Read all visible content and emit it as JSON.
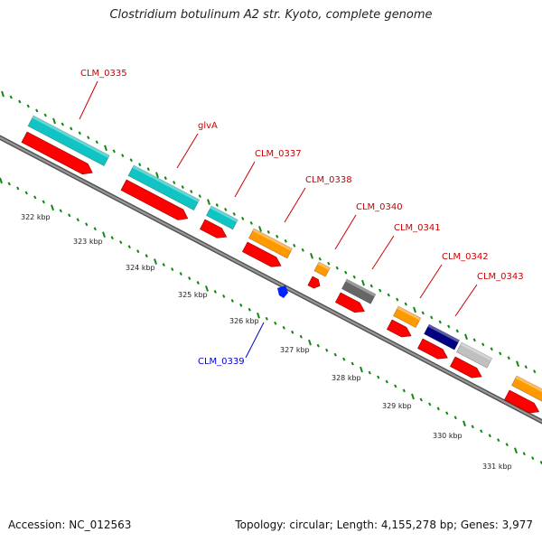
{
  "title": "Clostridium botulinum A2 str. Kyoto, complete genome",
  "footer": {
    "accession": "Accession: NC_012563",
    "stats": "Topology: circular; Length: 4,155,278 bp; Genes: 3,977"
  },
  "colors": {
    "cds": "#ff0000",
    "cyan_feature": "#11c4c4",
    "orange_feature": "#ff9900",
    "gray_feature": "#666666",
    "navy_feature": "#000080",
    "light_gray_feature": "#c0c0c0",
    "blue_feature": "#0022ff",
    "backbone": "#777777",
    "tick": "#118811",
    "label_red": "#cc0000",
    "label_blue": "#0000cc"
  },
  "kbp_labels": [
    "322 kbp",
    "323 kbp",
    "324 kbp",
    "325 kbp",
    "326 kbp",
    "327 kbp",
    "328 kbp",
    "329 kbp",
    "330 kbp",
    "331 kbp"
  ],
  "gene_labels": [
    {
      "text": "CLM_0335",
      "color": "red"
    },
    {
      "text": "glvA",
      "color": "red"
    },
    {
      "text": "CLM_0337",
      "color": "red"
    },
    {
      "text": "CLM_0338",
      "color": "red"
    },
    {
      "text": "CLM_0340",
      "color": "red"
    },
    {
      "text": "CLM_0341",
      "color": "red"
    },
    {
      "text": "CLM_0342",
      "color": "red"
    },
    {
      "text": "CLM_0343",
      "color": "red"
    },
    {
      "text": "CLM_0339",
      "color": "blue"
    }
  ]
}
